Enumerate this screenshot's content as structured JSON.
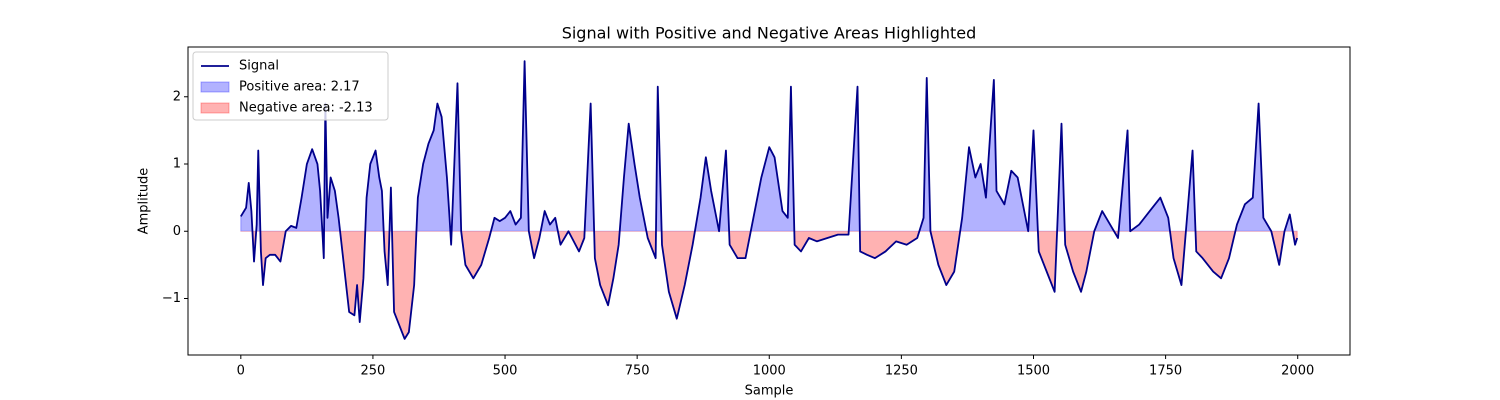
{
  "chart_data": {
    "type": "line",
    "title": "Signal with Positive and Negative Areas Highlighted",
    "xlabel": "Sample",
    "ylabel": "Amplitude",
    "x": [
      0,
      10,
      15,
      20,
      25,
      30,
      33,
      38,
      42,
      47,
      55,
      65,
      75,
      85,
      95,
      105,
      115,
      125,
      135,
      145,
      150,
      155,
      157,
      160,
      164,
      170,
      178,
      185,
      195,
      205,
      215,
      220,
      225,
      232,
      238,
      245,
      255,
      262,
      267,
      272,
      278,
      284,
      290,
      300,
      310,
      318,
      328,
      335,
      345,
      355,
      365,
      372,
      380,
      390,
      395,
      398,
      410,
      417,
      425,
      440,
      455,
      470,
      480,
      490,
      500,
      510,
      520,
      530,
      537,
      545,
      555,
      565,
      575,
      585,
      595,
      605,
      620,
      640,
      650,
      662,
      670,
      680,
      695,
      705,
      715,
      725,
      734,
      745,
      755,
      770,
      785,
      789,
      797,
      810,
      825,
      840,
      855,
      870,
      880,
      890,
      905,
      918,
      925,
      940,
      955,
      970,
      985,
      1000,
      1010,
      1025,
      1035,
      1041,
      1048,
      1060,
      1075,
      1090,
      1110,
      1130,
      1150,
      1167,
      1172,
      1185,
      1200,
      1220,
      1240,
      1260,
      1280,
      1292,
      1298,
      1305,
      1320,
      1335,
      1350,
      1365,
      1378,
      1390,
      1400,
      1410,
      1425,
      1430,
      1445,
      1458,
      1470,
      1480,
      1490,
      1500,
      1510,
      1525,
      1540,
      1553,
      1560,
      1575,
      1590,
      1600,
      1615,
      1630,
      1645,
      1660,
      1678,
      1683,
      1700,
      1720,
      1740,
      1755,
      1765,
      1780,
      1801,
      1808,
      1820,
      1840,
      1855,
      1870,
      1885,
      1900,
      1915,
      1926,
      1935,
      1950,
      1965,
      1975,
      1985,
      1995,
      1999
    ],
    "series": [
      {
        "name": "Signal",
        "color": "#00008b",
        "values": [
          0.22,
          0.35,
          0.72,
          0.3,
          -0.45,
          0.1,
          1.2,
          -0.3,
          -0.8,
          -0.4,
          -0.35,
          -0.35,
          -0.45,
          0.0,
          0.08,
          0.05,
          0.5,
          1.0,
          1.22,
          1.0,
          0.6,
          -0.1,
          -0.4,
          1.9,
          0.2,
          0.8,
          0.6,
          0.2,
          -0.5,
          -1.2,
          -1.25,
          -0.8,
          -1.35,
          -0.7,
          0.5,
          1.0,
          1.2,
          0.8,
          0.6,
          -0.3,
          -0.8,
          0.65,
          -1.2,
          -1.4,
          -1.6,
          -1.5,
          -0.8,
          0.5,
          1.0,
          1.3,
          1.5,
          1.9,
          1.7,
          0.8,
          0.2,
          -0.2,
          2.2,
          0.0,
          -0.5,
          -0.7,
          -0.5,
          -0.1,
          0.2,
          0.15,
          0.2,
          0.3,
          0.1,
          0.2,
          2.53,
          0.0,
          -0.4,
          -0.1,
          0.3,
          0.1,
          0.2,
          -0.2,
          0.0,
          -0.3,
          -0.1,
          1.9,
          -0.4,
          -0.8,
          -1.1,
          -0.7,
          -0.2,
          0.8,
          1.6,
          1.0,
          0.5,
          -0.1,
          -0.4,
          2.15,
          -0.2,
          -0.9,
          -1.3,
          -0.8,
          -0.2,
          0.5,
          1.1,
          0.6,
          0.0,
          1.2,
          -0.2,
          -0.4,
          -0.4,
          0.2,
          0.8,
          1.25,
          1.1,
          0.3,
          0.2,
          2.15,
          -0.2,
          -0.3,
          -0.1,
          -0.15,
          -0.1,
          -0.05,
          -0.05,
          2.15,
          -0.3,
          -0.35,
          -0.4,
          -0.3,
          -0.15,
          -0.2,
          -0.1,
          0.2,
          2.28,
          0.0,
          -0.5,
          -0.8,
          -0.6,
          0.2,
          1.25,
          0.8,
          1.0,
          0.5,
          2.25,
          0.6,
          0.4,
          0.9,
          0.8,
          0.4,
          0.0,
          1.5,
          -0.3,
          -0.6,
          -0.9,
          1.6,
          -0.2,
          -0.6,
          -0.9,
          -0.6,
          0.0,
          0.3,
          0.1,
          -0.1,
          1.5,
          0.0,
          0.1,
          0.3,
          0.5,
          0.2,
          -0.4,
          -0.8,
          1.2,
          -0.3,
          -0.4,
          -0.6,
          -0.7,
          -0.4,
          0.1,
          0.4,
          0.5,
          1.9,
          0.2,
          0.0,
          -0.5,
          0.0,
          0.25,
          -0.2,
          -0.1
        ]
      }
    ],
    "fills": [
      {
        "name": "Positive area: 2.17",
        "color": "#0000ff"
      },
      {
        "name": "Negative area: -2.13",
        "color": "#ff0000"
      }
    ],
    "xlim": [
      -99.95,
      2098.95
    ],
    "ylim": [
      -1.84,
      2.74
    ],
    "xticks": [
      0,
      250,
      500,
      750,
      1000,
      1250,
      1500,
      1750,
      2000
    ],
    "yticks": [
      {
        "value": -1,
        "label": "−1"
      },
      0,
      1,
      2
    ],
    "legend": "upper left"
  }
}
